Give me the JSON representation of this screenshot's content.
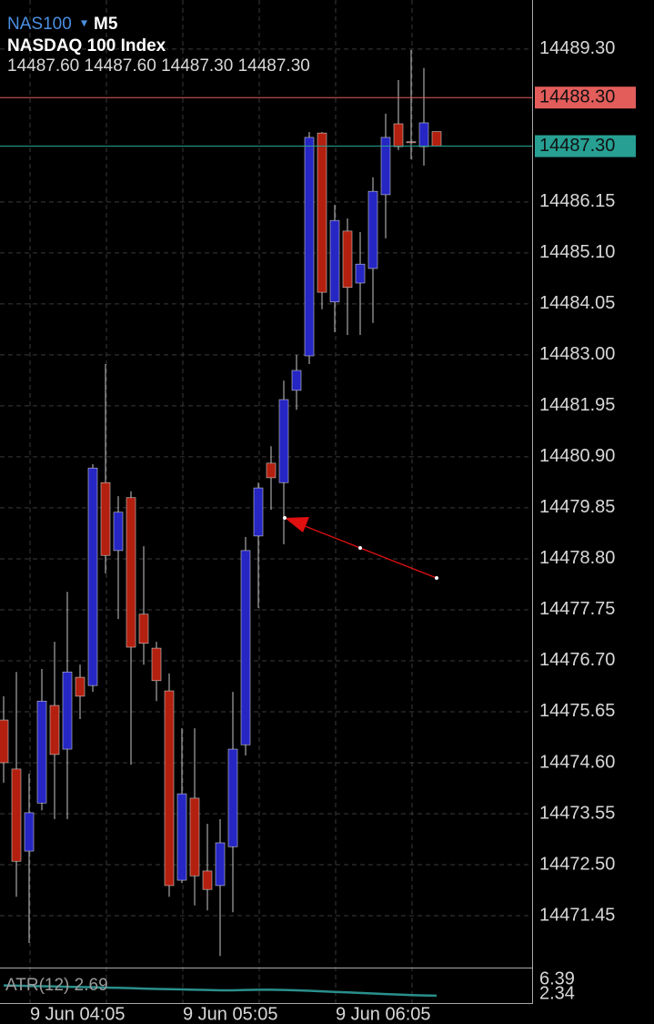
{
  "header": {
    "symbol": "NAS100",
    "dropdown": "▾",
    "timeframe": "M5",
    "name": "NASDAQ 100 Index",
    "ohlc": [
      "14487.60",
      "14487.60",
      "14487.30",
      "14487.30"
    ]
  },
  "chart_data": [
    {
      "type": "candlestick",
      "categories": [
        null,
        null,
        "9 Jun 04:05",
        null,
        null,
        null,
        null,
        null,
        null,
        null,
        null,
        null,
        null,
        null,
        "9 Jun 05:05",
        null,
        null,
        null,
        null,
        null,
        null,
        null,
        null,
        null,
        null,
        null,
        "9 Jun 06:05",
        null,
        null,
        null,
        null,
        null,
        null,
        null,
        null
      ],
      "open": [
        14475.48,
        14474.47,
        14472.78,
        14473.77,
        14475.78,
        14474.88,
        14476.36,
        14476.19,
        14480.37,
        14478.97,
        14480.06,
        14477.66,
        14476.96,
        14476.08,
        14472.18,
        14473.87,
        14472.37,
        14472.07,
        14472.87,
        14474.97,
        14479.27,
        14480.77,
        14480.37,
        14482.27,
        14482.98,
        14487.57,
        14484.09,
        14485.55,
        14484.48,
        14484.78,
        14486.3,
        14487.76,
        14487.39,
        14487.29,
        14487.6
      ],
      "high": [
        14475.97,
        14476.47,
        14474.37,
        14476.53,
        14477.09,
        14478.12,
        14476.62,
        14480.75,
        14482.81,
        14480.09,
        14480.19,
        14479.06,
        14477.09,
        14476.44,
        14475.31,
        14475.31,
        14473.34,
        14473.44,
        14476.06,
        14479.25,
        14480.37,
        14481.12,
        14482.47,
        14483.0,
        14487.59,
        14487.59,
        14486.09,
        14485.81,
        14485.53,
        14486.66,
        14487.97,
        14488.66,
        14489.28,
        14488.91,
        14487.6
      ],
      "low": [
        14474.19,
        14471.84,
        14470.89,
        14473.62,
        14473.44,
        14473.44,
        14475.5,
        14476.06,
        14478.5,
        14477.56,
        14474.56,
        14476.62,
        14475.87,
        14471.84,
        14472.12,
        14471.66,
        14471.56,
        14470.62,
        14471.52,
        14474.75,
        14477.79,
        14479.81,
        14479.1,
        14481.87,
        14482.81,
        14483.94,
        14483.47,
        14483.41,
        14483.41,
        14483.66,
        14485.4,
        14487.22,
        14487.03,
        14486.9,
        14487.3
      ],
      "close": [
        14474.6,
        14472.57,
        14473.57,
        14475.87,
        14474.77,
        14476.47,
        14475.97,
        14480.67,
        14478.87,
        14479.76,
        14476.98,
        14477.06,
        14476.29,
        14472.07,
        14473.96,
        14472.27,
        14471.99,
        14472.95,
        14474.88,
        14478.97,
        14480.26,
        14480.47,
        14482.08,
        14482.68,
        14487.48,
        14484.29,
        14485.77,
        14484.39,
        14484.87,
        14486.37,
        14487.48,
        14487.29,
        14487.37,
        14487.78,
        14487.3
      ],
      "up_color": "#2626c4",
      "down_color": "#b3200f",
      "ylim": [
        14470.4,
        14490.31
      ],
      "yticks": [
        {
          "value": 14489.3,
          "label": "14489.30"
        },
        {
          "value": 14486.15,
          "label": "14486.15"
        },
        {
          "value": 14485.1,
          "label": "14485.10"
        },
        {
          "value": 14484.05,
          "label": "14484.05"
        },
        {
          "value": 14483.0,
          "label": "14483.00"
        },
        {
          "value": 14481.95,
          "label": "14481.95"
        },
        {
          "value": 14480.9,
          "label": "14480.90"
        },
        {
          "value": 14479.85,
          "label": "14479.85"
        },
        {
          "value": 14478.8,
          "label": "14478.80"
        },
        {
          "value": 14477.75,
          "label": "14477.75"
        },
        {
          "value": 14476.7,
          "label": "14476.70"
        },
        {
          "value": 14475.65,
          "label": "14475.65"
        },
        {
          "value": 14474.6,
          "label": "14474.60"
        },
        {
          "value": 14473.55,
          "label": "14473.55"
        },
        {
          "value": 14472.5,
          "label": "14472.50"
        },
        {
          "value": 14471.45,
          "label": "14471.45"
        }
      ],
      "price_lines": [
        {
          "value": 14488.3,
          "label": "14488.30",
          "color": "#e35d5b"
        },
        {
          "value": 14487.3,
          "label": "14487.30",
          "color": "#27a093"
        }
      ],
      "grid": true
    },
    {
      "type": "line",
      "title": "ATR(12) 2.69",
      "color": "#2a8f8c",
      "values": [
        4.6,
        4.55,
        4.5,
        4.45,
        4.4,
        4.35,
        4.3,
        4.25,
        4.2,
        4.15,
        4.1,
        4.0,
        3.95,
        3.9,
        3.85,
        3.8,
        3.75,
        3.7,
        3.7,
        3.75,
        3.8,
        3.8,
        3.75,
        3.7,
        3.6,
        3.5,
        3.4,
        3.3,
        3.2,
        3.1,
        3.0,
        2.9,
        2.8,
        2.75,
        2.69
      ],
      "ylim": [
        2.34,
        6.39
      ],
      "yticks": [
        6.39,
        2.34
      ]
    }
  ]
}
